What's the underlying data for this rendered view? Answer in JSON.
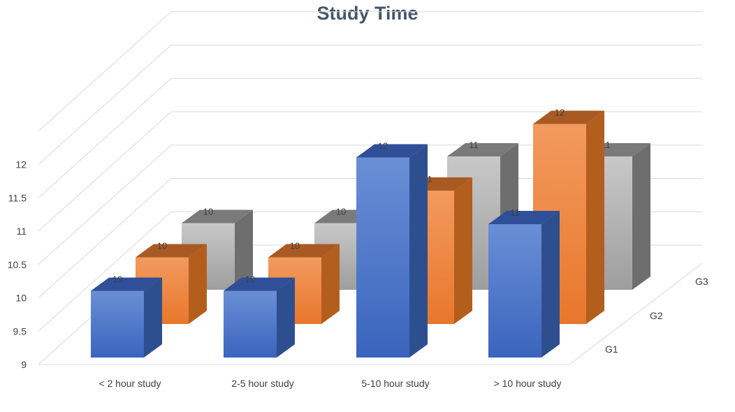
{
  "chart_data": {
    "type": "bar",
    "title": "Study Time",
    "categories": [
      "< 2 hour study",
      "2-5 hour study",
      "5-10 hour study",
      "> 10 hour study"
    ],
    "series": [
      {
        "name": "G1",
        "values": [
          10,
          10,
          12,
          11
        ],
        "color": "#4472c4"
      },
      {
        "name": "G2",
        "values": [
          10,
          10,
          11,
          12
        ],
        "color": "#ed7d31"
      },
      {
        "name": "G3",
        "values": [
          10,
          10,
          11,
          11
        ],
        "color": "#a5a5a5"
      }
    ],
    "yticks": [
      "9",
      "9.5",
      "10",
      "10.5",
      "11",
      "11.5",
      "12"
    ],
    "ylim": [
      9,
      12.5
    ],
    "grid": true,
    "data_labels": true
  }
}
